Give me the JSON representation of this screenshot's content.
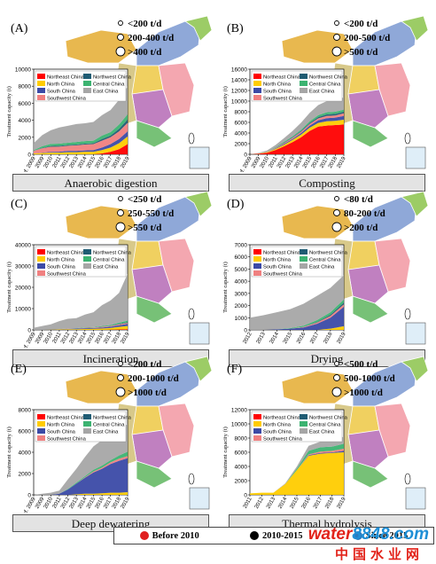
{
  "colors": {
    "northeast": "#ff0000",
    "north": "#ffcc00",
    "south": "#3b4aa6",
    "southwest": "#f08080",
    "northwest": "#1f5c73",
    "central": "#3cb371",
    "east": "#a6a6a6",
    "before2010": "#e02020",
    "y2010_2015": "#000000",
    "since2015": "#2b7bbf"
  },
  "region_legend": {
    "northeast": "Northeast China",
    "northwest": "Northwest China",
    "north": "North China",
    "central": "Central China",
    "south": "South China",
    "east": "East China",
    "southwest": "Southwest China"
  },
  "bottom_legend": {
    "before": "Before 2010",
    "mid": "2010-2015",
    "since": "Since 2015"
  },
  "watermark": {
    "brand_a": "water",
    "brand_b": "8848",
    "brand_c": ".com",
    "cn": "中国水业网"
  },
  "chart_data": [
    {
      "id": "A",
      "letter": "(A)",
      "title": "Anaerobic digestion",
      "type": "area",
      "ylabel": "Treatment capacity (t)",
      "ylim": [
        0,
        10000
      ],
      "yticks": [
        0,
        2000,
        4000,
        6000,
        8000,
        10000
      ],
      "x": [
        "Bef. 2009",
        "2009",
        "2010",
        "2011",
        "2012",
        "2013",
        "2014",
        "2015",
        "2016",
        "2017",
        "2018",
        "2019"
      ],
      "series": [
        {
          "name": "Northeast China",
          "key": "northeast",
          "values": [
            0,
            0,
            0,
            0,
            0,
            0,
            0,
            0,
            100,
            300,
            600,
            1200
          ]
        },
        {
          "name": "North China",
          "key": "north",
          "values": [
            100,
            150,
            200,
            200,
            250,
            250,
            300,
            300,
            400,
            500,
            700,
            900
          ]
        },
        {
          "name": "South China",
          "key": "south",
          "values": [
            0,
            50,
            80,
            100,
            150,
            150,
            150,
            200,
            300,
            400,
            500,
            600
          ]
        },
        {
          "name": "Southwest China",
          "key": "southwest",
          "values": [
            300,
            500,
            600,
            600,
            600,
            650,
            700,
            700,
            800,
            800,
            900,
            1000
          ]
        },
        {
          "name": "Northwest China",
          "key": "northwest",
          "values": [
            0,
            50,
            100,
            100,
            100,
            100,
            100,
            100,
            200,
            200,
            300,
            400
          ]
        },
        {
          "name": "Central China",
          "key": "central",
          "values": [
            100,
            200,
            250,
            250,
            250,
            300,
            300,
            300,
            400,
            400,
            500,
            600
          ]
        },
        {
          "name": "East China",
          "key": "east",
          "values": [
            800,
            1300,
            1600,
            1900,
            2000,
            2100,
            2100,
            2200,
            2400,
            2600,
            2900,
            3300
          ]
        }
      ],
      "size_legend": [
        "<200 t/d",
        "200-400 t/d",
        ">400 t/d"
      ]
    },
    {
      "id": "B",
      "letter": "(B)",
      "title": "Composting",
      "type": "area",
      "ylabel": "Treatment capacity (t)",
      "ylim": [
        0,
        16000
      ],
      "yticks": [
        0,
        2000,
        4000,
        6000,
        8000,
        10000,
        12000,
        14000,
        16000
      ],
      "x": [
        "Bef. 2009",
        "2009",
        "2010",
        "2011",
        "2012",
        "2013",
        "2014",
        "2015",
        "2016",
        "2017",
        "2018",
        "2019"
      ],
      "series": [
        {
          "name": "Northeast China",
          "key": "northeast",
          "values": [
            0,
            100,
            300,
            800,
            1500,
            2300,
            3200,
            4400,
            5200,
            5400,
            5500,
            5600
          ]
        },
        {
          "name": "North China",
          "key": "north",
          "values": [
            0,
            50,
            100,
            200,
            300,
            400,
            500,
            600,
            700,
            800,
            800,
            900
          ]
        },
        {
          "name": "South China",
          "key": "south",
          "values": [
            0,
            0,
            0,
            100,
            150,
            200,
            300,
            400,
            500,
            600,
            600,
            700
          ]
        },
        {
          "name": "Southwest China",
          "key": "southwest",
          "values": [
            0,
            0,
            50,
            100,
            150,
            200,
            250,
            300,
            350,
            400,
            400,
            500
          ]
        },
        {
          "name": "Northwest China",
          "key": "northwest",
          "values": [
            0,
            0,
            0,
            50,
            100,
            100,
            150,
            200,
            250,
            300,
            300,
            300
          ]
        },
        {
          "name": "Central China",
          "key": "central",
          "values": [
            0,
            0,
            50,
            100,
            150,
            200,
            250,
            300,
            350,
            400,
            400,
            400
          ]
        },
        {
          "name": "East China",
          "key": "east",
          "values": [
            0,
            100,
            200,
            400,
            700,
            1000,
            1300,
            1600,
            1900,
            2100,
            2200,
            2300
          ]
        }
      ],
      "size_legend": [
        "<200 t/d",
        "200-500 t/d",
        ">500 t/d"
      ]
    },
    {
      "id": "C",
      "letter": "(C)",
      "title": "Incineration",
      "type": "area",
      "ylabel": "Treatment capacity (t)",
      "ylim": [
        0,
        40000
      ],
      "yticks": [
        0,
        10000,
        20000,
        30000,
        40000
      ],
      "x": [
        "Bef. 2009",
        "2009",
        "2010",
        "2011",
        "2012",
        "2013",
        "2014",
        "2015",
        "2016",
        "2017",
        "2018",
        "2019"
      ],
      "series": [
        {
          "name": "Northeast China",
          "key": "northeast",
          "values": [
            0,
            0,
            0,
            0,
            0,
            0,
            0,
            0,
            0,
            100,
            200,
            300
          ]
        },
        {
          "name": "North China",
          "key": "north",
          "values": [
            0,
            0,
            100,
            200,
            300,
            300,
            400,
            500,
            600,
            800,
            1200,
            1500
          ]
        },
        {
          "name": "South China",
          "key": "south",
          "values": [
            0,
            0,
            0,
            100,
            200,
            300,
            400,
            400,
            500,
            600,
            800,
            1000
          ]
        },
        {
          "name": "Southwest China",
          "key": "southwest",
          "values": [
            0,
            0,
            0,
            0,
            100,
            100,
            200,
            200,
            300,
            300,
            400,
            500
          ]
        },
        {
          "name": "Northwest China",
          "key": "northwest",
          "values": [
            0,
            0,
            0,
            0,
            0,
            0,
            0,
            0,
            100,
            100,
            200,
            300
          ]
        },
        {
          "name": "Central China",
          "key": "central",
          "values": [
            0,
            0,
            0,
            0,
            100,
            100,
            200,
            200,
            300,
            400,
            600,
            800
          ]
        },
        {
          "name": "East China",
          "key": "east",
          "values": [
            1000,
            1800,
            2500,
            3800,
            4500,
            4700,
            6000,
            7000,
            9800,
            11500,
            14000,
            22000
          ]
        }
      ],
      "size_legend": [
        "<250 t/d",
        "250-550 t/d",
        ">550 t/d"
      ]
    },
    {
      "id": "D",
      "letter": "(D)",
      "title": "Drying",
      "type": "area",
      "ylabel": "Treatment capacity (t)",
      "ylim": [
        0,
        7000
      ],
      "yticks": [
        0,
        1000,
        2000,
        3000,
        4000,
        5000,
        6000,
        7000
      ],
      "x": [
        "2012",
        "2013",
        "2014",
        "2015",
        "2016",
        "2017",
        "2018",
        "2019"
      ],
      "series": [
        {
          "name": "Northeast China",
          "key": "northeast",
          "values": [
            0,
            0,
            0,
            0,
            0,
            0,
            0,
            0
          ]
        },
        {
          "name": "North China",
          "key": "north",
          "values": [
            0,
            0,
            0,
            0,
            0,
            0,
            100,
            300
          ]
        },
        {
          "name": "South China",
          "key": "south",
          "values": [
            0,
            0,
            50,
            100,
            200,
            500,
            900,
            1600
          ]
        },
        {
          "name": "Southwest China",
          "key": "southwest",
          "values": [
            0,
            0,
            0,
            0,
            50,
            100,
            150,
            200
          ]
        },
        {
          "name": "Northwest China",
          "key": "northwest",
          "values": [
            0,
            0,
            0,
            0,
            0,
            50,
            100,
            150
          ]
        },
        {
          "name": "Central China",
          "key": "central",
          "values": [
            0,
            0,
            0,
            50,
            100,
            150,
            200,
            250
          ]
        },
        {
          "name": "East China",
          "key": "east",
          "values": [
            1000,
            1200,
            1400,
            1550,
            1800,
            2000,
            2000,
            2000
          ]
        }
      ],
      "size_legend": [
        "<80 t/d",
        "80-200 t/d",
        ">200 t/d"
      ]
    },
    {
      "id": "E",
      "letter": "(E)",
      "title": "Deep dewatering",
      "type": "area",
      "ylabel": "Treatment capacity (t)",
      "ylim": [
        0,
        8000
      ],
      "yticks": [
        0,
        2000,
        4000,
        6000,
        8000
      ],
      "x": [
        "Bef. 2009",
        "2009",
        "2010",
        "2011",
        "2012",
        "2013",
        "2014",
        "2015",
        "2016",
        "2017",
        "2018",
        "2019"
      ],
      "series": [
        {
          "name": "Northeast China",
          "key": "northeast",
          "values": [
            0,
            0,
            0,
            0,
            0,
            0,
            0,
            0,
            0,
            0,
            0,
            0
          ]
        },
        {
          "name": "North China",
          "key": "north",
          "values": [
            0,
            0,
            0,
            0,
            0,
            50,
            100,
            100,
            150,
            200,
            200,
            250
          ]
        },
        {
          "name": "South China",
          "key": "south",
          "values": [
            0,
            0,
            0,
            100,
            500,
            1000,
            1500,
            2000,
            2300,
            2700,
            3000,
            3200
          ]
        },
        {
          "name": "Southwest China",
          "key": "southwest",
          "values": [
            0,
            0,
            0,
            0,
            0,
            0,
            50,
            100,
            100,
            150,
            200,
            200
          ]
        },
        {
          "name": "Northwest China",
          "key": "northwest",
          "values": [
            0,
            0,
            0,
            0,
            0,
            0,
            0,
            0,
            0,
            0,
            0,
            0
          ]
        },
        {
          "name": "Central China",
          "key": "central",
          "values": [
            0,
            0,
            0,
            0,
            50,
            100,
            100,
            150,
            200,
            200,
            300,
            400
          ]
        },
        {
          "name": "East China",
          "key": "east",
          "values": [
            0,
            100,
            200,
            300,
            900,
            1300,
            1800,
            2200,
            2400,
            2400,
            2500,
            2600
          ]
        }
      ],
      "size_legend": [
        "<200 t/d",
        "200-1000 t/d",
        ">1000 t/d"
      ]
    },
    {
      "id": "F",
      "letter": "(F)",
      "title": "Thermal hydrolysis",
      "type": "area",
      "ylabel": "Treatment capacity (t)",
      "ylim": [
        0,
        12000
      ],
      "yticks": [
        0,
        2000,
        4000,
        6000,
        8000,
        10000,
        12000
      ],
      "x": [
        "2011",
        "2012",
        "2013",
        "2014",
        "2015",
        "2016",
        "2017",
        "2018",
        "2019"
      ],
      "series": [
        {
          "name": "Northeast China",
          "key": "northeast",
          "values": [
            0,
            0,
            0,
            0,
            0,
            0,
            0,
            0,
            0
          ]
        },
        {
          "name": "North China",
          "key": "north",
          "values": [
            200,
            300,
            300,
            1500,
            3500,
            5500,
            5800,
            5900,
            6000
          ]
        },
        {
          "name": "South China",
          "key": "south",
          "values": [
            0,
            0,
            0,
            0,
            0,
            100,
            100,
            100,
            200
          ]
        },
        {
          "name": "Southwest China",
          "key": "southwest",
          "values": [
            0,
            0,
            0,
            0,
            0,
            100,
            200,
            200,
            300
          ]
        },
        {
          "name": "Northwest China",
          "key": "northwest",
          "values": [
            0,
            0,
            0,
            0,
            0,
            0,
            0,
            0,
            0
          ]
        },
        {
          "name": "Central China",
          "key": "central",
          "values": [
            0,
            0,
            0,
            0,
            200,
            500,
            600,
            600,
            700
          ]
        },
        {
          "name": "East China",
          "key": "east",
          "values": [
            0,
            0,
            0,
            100,
            300,
            700,
            800,
            900,
            1000
          ]
        }
      ],
      "size_legend": [
        "<500 t/d",
        "500-1000 t/d",
        ">1000 t/d"
      ]
    }
  ]
}
